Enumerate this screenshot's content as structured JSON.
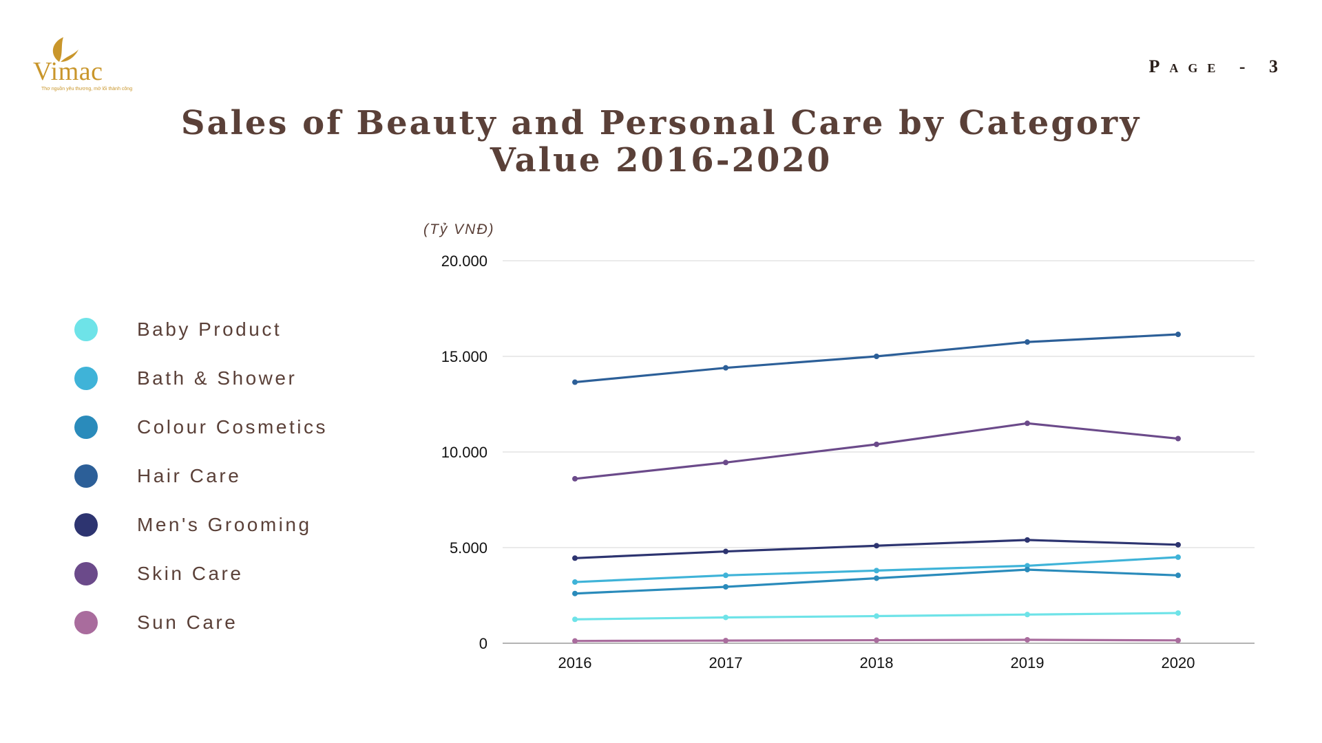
{
  "logo": {
    "text": "Vimac",
    "tagline": "Thơ nguồn yêu thương, mở lối thành công"
  },
  "page_label": "Page - 3",
  "chart_data": {
    "type": "line",
    "title": "Sales of Beauty and Personal Care by Category Value 2016-2020",
    "title_lines": [
      "Sales of Beauty and Personal Care by Category",
      "Value 2016-2020"
    ],
    "ylabel": "(Tỷ VNĐ)",
    "x": [
      "2016",
      "2017",
      "2018",
      "2019",
      "2020"
    ],
    "ylim": [
      0,
      20000
    ],
    "yticks": [
      0,
      5000,
      10000,
      15000,
      20000
    ],
    "ytick_labels": [
      "0",
      "5.000",
      "10.000",
      "15.000",
      "20.000"
    ],
    "grid": true,
    "legend_position": "left",
    "series": [
      {
        "name": "Baby Product",
        "color": "#6ee3e8",
        "values": [
          1250,
          1350,
          1420,
          1500,
          1580
        ]
      },
      {
        "name": "Bath & Shower",
        "color": "#3fb3d8",
        "values": [
          3200,
          3550,
          3800,
          4050,
          4500
        ]
      },
      {
        "name": "Colour Cosmetics",
        "color": "#2a8bbb",
        "values": [
          2600,
          2950,
          3400,
          3850,
          3550
        ]
      },
      {
        "name": "Hair Care",
        "color": "#2c5f98",
        "values": [
          13650,
          14400,
          15000,
          15750,
          16150
        ]
      },
      {
        "name": "Men's Grooming",
        "color": "#2d3470",
        "values": [
          4450,
          4800,
          5100,
          5400,
          5150
        ]
      },
      {
        "name": "Skin Care",
        "color": "#6b4a8a",
        "values": [
          8600,
          9450,
          10400,
          11500,
          10700
        ]
      },
      {
        "name": "Sun Care",
        "color": "#a96c9d",
        "values": [
          120,
          140,
          160,
          180,
          150
        ]
      }
    ]
  }
}
